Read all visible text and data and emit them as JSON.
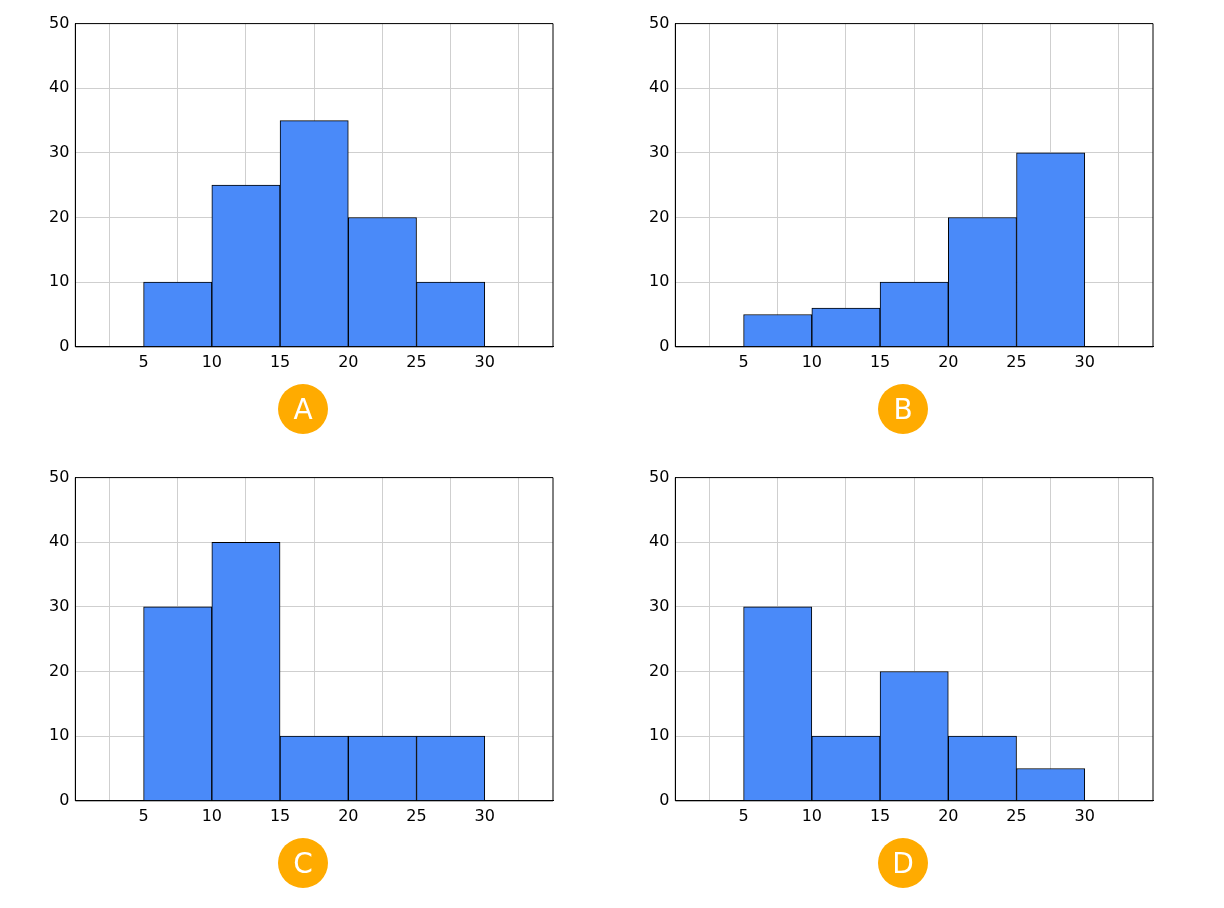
{
  "chart_data": [
    {
      "type": "histogram",
      "bins": [
        5,
        10,
        15,
        20,
        25,
        30
      ],
      "values": [
        10,
        25,
        35,
        20,
        10
      ],
      "color": "#4a8af9",
      "xlim": [
        0,
        35
      ],
      "xticks": [
        5,
        10,
        15,
        20,
        25,
        30
      ],
      "ylim": [
        0,
        50
      ],
      "yticks": [
        0,
        10,
        20,
        30,
        40,
        50
      ],
      "grid": true,
      "annotations": [
        "A"
      ]
    },
    {
      "type": "histogram",
      "bins": [
        5,
        10,
        15,
        20,
        25,
        30
      ],
      "values": [
        5,
        6,
        10,
        20,
        30
      ],
      "color": "#4a8af9",
      "xlim": [
        0,
        35
      ],
      "xticks": [
        5,
        10,
        15,
        20,
        25,
        30
      ],
      "ylim": [
        0,
        50
      ],
      "yticks": [
        0,
        10,
        20,
        30,
        40,
        50
      ],
      "grid": true,
      "annotations": [
        "B"
      ]
    },
    {
      "type": "histogram",
      "bins": [
        5,
        10,
        15,
        20,
        25,
        30
      ],
      "values": [
        30,
        40,
        10,
        10,
        10
      ],
      "color": "#4a8af9",
      "xlim": [
        0,
        35
      ],
      "xticks": [
        5,
        10,
        15,
        20,
        25,
        30
      ],
      "ylim": [
        0,
        50
      ],
      "yticks": [
        0,
        10,
        20,
        30,
        40,
        50
      ],
      "grid": true,
      "annotations": [
        "C"
      ]
    },
    {
      "type": "histogram",
      "bins": [
        5,
        10,
        15,
        20,
        25,
        30
      ],
      "values": [
        30,
        10,
        20,
        10,
        5
      ],
      "color": "#4a8af9",
      "xlim": [
        0,
        35
      ],
      "xticks": [
        5,
        10,
        15,
        20,
        25,
        30
      ],
      "ylim": [
        0,
        50
      ],
      "yticks": [
        0,
        10,
        20,
        30,
        40,
        50
      ],
      "grid": true,
      "annotations": [
        "D"
      ]
    }
  ]
}
